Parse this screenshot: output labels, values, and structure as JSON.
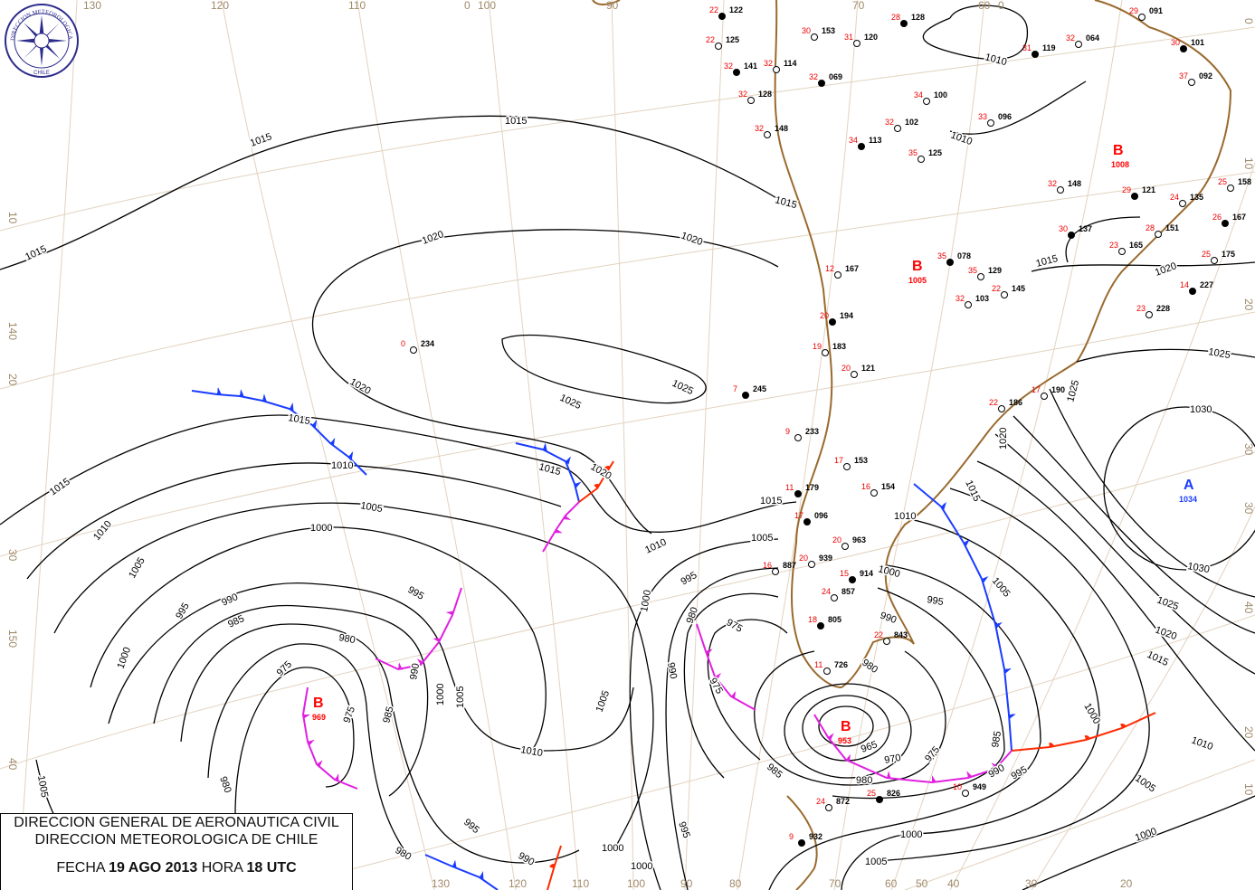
{
  "header": {
    "line1": "DIRECCION GENERAL DE AERONAUTICA CIVIL",
    "line2": "DIRECCION METEOROLOGICA DE CHILE",
    "date_label": "FECHA",
    "date": "19 AGO 2013",
    "hour_label": "HORA",
    "hour": "18 UTC"
  },
  "logo": {
    "text_top": "DIRECCION METEOROLOGICA",
    "text_bottom": "CHILE"
  },
  "colors": {
    "isobar": "#000000",
    "cold_front": "#1a3cff",
    "warm_front": "#ff2a00",
    "occluded_front": "#e020e0",
    "low": "#ff0000",
    "high": "#1a3cff",
    "coast": "#9a6a2e",
    "graticule": "#e2d2bf"
  },
  "pressure_centers": [
    {
      "type": "B",
      "value": "969"
    },
    {
      "type": "B",
      "value": "953"
    },
    {
      "type": "A",
      "value": "1034"
    },
    {
      "type": "B",
      "value": "1005"
    },
    {
      "type": "B",
      "value": "1008"
    }
  ],
  "graticule_labels": {
    "top": [
      "130",
      "120",
      "110",
      "0",
      "100",
      "90",
      "70",
      "60",
      "0"
    ],
    "bottom": [
      "130",
      "120",
      "110",
      "100",
      "90",
      "80",
      "70",
      "60",
      "50",
      "40",
      "30",
      "20"
    ],
    "left": [
      "10",
      "140",
      "20",
      "30",
      "150",
      "40"
    ],
    "right": [
      "0",
      "10",
      "20",
      "30",
      "30",
      "40",
      "20",
      "10"
    ]
  },
  "isobar_labels": [
    "1015",
    "1015",
    "1015",
    "1020",
    "1020",
    "1020",
    "1025",
    "1025",
    "1015",
    "1010",
    "1015",
    "1005",
    "1000",
    "1015",
    "1020",
    "1010",
    "1005",
    "995",
    "990",
    "995",
    "985",
    "980",
    "1000",
    "975",
    "990",
    "1000",
    "1005",
    "985",
    "975",
    "1010",
    "1005",
    "1005",
    "980",
    "995",
    "980",
    "990",
    "1000",
    "1000",
    "1010",
    "1005",
    "1000",
    "995",
    "980",
    "990",
    "975",
    "975",
    "1000",
    "995",
    "990",
    "980",
    "965",
    "970",
    "975",
    "985",
    "980",
    "985",
    "990",
    "995",
    "1000",
    "1005",
    "1010",
    "1015",
    "1030",
    "1030",
    "1025",
    "1020",
    "1015",
    "1010",
    "1005",
    "1000",
    "1025",
    "1020",
    "1015",
    "1010",
    "1010",
    "1000",
    "1005",
    "995",
    "1015",
    "1020",
    "1025",
    "1015"
  ],
  "stations": [
    {
      "p": "122",
      "t": "22"
    },
    {
      "p": "153",
      "t": "30"
    },
    {
      "p": "125",
      "t": "22"
    },
    {
      "p": "141",
      "t": "32"
    },
    {
      "p": "114",
      "t": "32"
    },
    {
      "p": "128",
      "t": "32"
    },
    {
      "p": "069",
      "t": "32"
    },
    {
      "p": "120",
      "t": "31"
    },
    {
      "p": "148",
      "t": "32"
    },
    {
      "p": "113",
      "t": "34"
    },
    {
      "p": "102",
      "t": "32"
    },
    {
      "p": "125",
      "t": "35"
    },
    {
      "p": "128",
      "t": "28"
    },
    {
      "p": "100",
      "t": "34"
    },
    {
      "p": "096",
      "t": "33"
    },
    {
      "p": "119",
      "t": "31"
    },
    {
      "p": "064",
      "t": "32"
    },
    {
      "p": "091",
      "t": "29"
    },
    {
      "p": "101",
      "t": "30"
    },
    {
      "p": "092",
      "t": "37"
    },
    {
      "p": "167",
      "t": "12"
    },
    {
      "p": "194",
      "t": "20"
    },
    {
      "p": "183",
      "t": "19"
    },
    {
      "p": "121",
      "t": "20"
    },
    {
      "p": "245",
      "t": "7"
    },
    {
      "p": "234",
      "t": "0"
    },
    {
      "p": "233",
      "t": "9"
    },
    {
      "p": "179",
      "t": "11"
    },
    {
      "p": "153",
      "t": "17"
    },
    {
      "p": "154",
      "t": "16"
    },
    {
      "p": "096",
      "t": "17"
    },
    {
      "p": "939",
      "t": "20"
    },
    {
      "p": "963",
      "t": "20"
    },
    {
      "p": "914",
      "t": "15"
    },
    {
      "p": "887",
      "t": "16"
    },
    {
      "p": "857",
      "t": "24"
    },
    {
      "p": "805",
      "t": "18"
    },
    {
      "p": "843",
      "t": "22"
    },
    {
      "p": "726",
      "t": "11"
    },
    {
      "p": "826",
      "t": "25"
    },
    {
      "p": "872",
      "t": "24"
    },
    {
      "p": "949",
      "t": "10"
    },
    {
      "p": "932",
      "t": "9"
    },
    {
      "p": "175",
      "t": "25"
    },
    {
      "p": "228",
      "t": "23"
    },
    {
      "p": "227",
      "t": "14"
    },
    {
      "p": "186",
      "t": "22"
    },
    {
      "p": "190",
      "t": "17"
    },
    {
      "p": "167",
      "t": "26"
    },
    {
      "p": "158",
      "t": "25"
    },
    {
      "p": "135",
      "t": "24"
    },
    {
      "p": "121",
      "t": "29"
    },
    {
      "p": "151",
      "t": "28"
    },
    {
      "p": "165",
      "t": "23"
    },
    {
      "p": "137",
      "t": "30"
    },
    {
      "p": "148",
      "t": "32"
    },
    {
      "p": "129",
      "t": "35"
    },
    {
      "p": "078",
      "t": "35"
    },
    {
      "p": "145",
      "t": "22"
    },
    {
      "p": "103",
      "t": "32"
    }
  ]
}
